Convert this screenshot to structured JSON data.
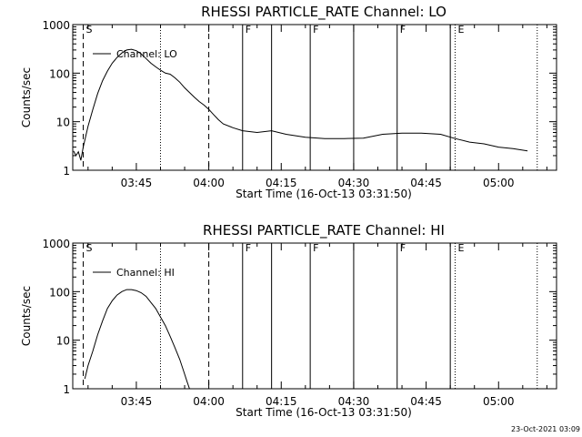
{
  "footer_date": "23-Oct-2021 03:09",
  "chart_data": [
    {
      "type": "line",
      "title": "RHESSI PARTICLE_RATE Channel: LO",
      "xlabel": "Start Time (16-Oct-13 03:31:50)",
      "ylabel": "Counts/sec",
      "yscale": "log",
      "ylim": [
        1,
        1000
      ],
      "xlim": [
        "03:31:50",
        "05:12:00"
      ],
      "x_ticks": [
        "03:45",
        "04:00",
        "04:15",
        "04:30",
        "04:45",
        "05:00"
      ],
      "y_ticks": [
        "1",
        "10",
        "100",
        "1000"
      ],
      "legend": {
        "position": "top-left",
        "entries": [
          "Channel: LO"
        ]
      },
      "markers": [
        {
          "time": "03:34",
          "style": "dashed",
          "label": "S"
        },
        {
          "time": "03:50",
          "style": "dotted",
          "label": ""
        },
        {
          "time": "04:00",
          "style": "dashed",
          "label": ""
        },
        {
          "time": "04:07",
          "style": "solid",
          "label": "F"
        },
        {
          "time": "04:13",
          "style": "solid",
          "label": ""
        },
        {
          "time": "04:21",
          "style": "solid",
          "label": "F"
        },
        {
          "time": "04:30",
          "style": "solid",
          "label": ""
        },
        {
          "time": "04:39",
          "style": "solid",
          "label": "F"
        },
        {
          "time": "04:50",
          "style": "solid",
          "label": ""
        },
        {
          "time": "04:51",
          "style": "dotted",
          "label": "E"
        },
        {
          "time": "05:08",
          "style": "dotted",
          "label": ""
        }
      ],
      "series": [
        {
          "name": "Channel: LO",
          "x": [
            "03:32:00",
            "03:32:30",
            "03:33:00",
            "03:33:30",
            "03:34:00",
            "03:35:00",
            "03:36:00",
            "03:37:00",
            "03:38:00",
            "03:39:00",
            "03:40:00",
            "03:41:00",
            "03:42:00",
            "03:43:00",
            "03:44:00",
            "03:45:00",
            "03:46:00",
            "03:47:00",
            "03:48:00",
            "03:49:00",
            "03:50:00",
            "03:51:00",
            "03:52:00",
            "03:53:00",
            "03:54:00",
            "03:55:00",
            "03:56:00",
            "03:57:00",
            "03:58:00",
            "03:59:00",
            "04:00:00",
            "04:01:00",
            "04:02:00",
            "04:03:00",
            "04:05:00",
            "04:07:00",
            "04:10:00",
            "04:13:00",
            "04:16:00",
            "04:20:00",
            "04:24:00",
            "04:28:00",
            "04:32:00",
            "04:36:00",
            "04:40:00",
            "04:44:00",
            "04:48:00",
            "04:51:00",
            "04:54:00",
            "04:57:00",
            "05:00:00",
            "05:03:00",
            "05:06:00"
          ],
          "values": [
            2.5,
            2.0,
            2.4,
            1.6,
            3.0,
            8,
            18,
            38,
            70,
            110,
            160,
            210,
            260,
            300,
            310,
            290,
            250,
            200,
            160,
            135,
            115,
            100,
            95,
            80,
            65,
            50,
            40,
            32,
            26,
            22,
            18,
            14,
            11,
            9,
            7.5,
            6.5,
            6.0,
            6.5,
            5.5,
            4.8,
            4.5,
            4.5,
            4.6,
            5.5,
            5.8,
            5.8,
            5.5,
            4.5,
            3.8,
            3.5,
            3.0,
            2.8,
            2.5
          ]
        }
      ]
    },
    {
      "type": "line",
      "title": "RHESSI PARTICLE_RATE Channel: HI",
      "xlabel": "Start Time (16-Oct-13 03:31:50)",
      "ylabel": "Counts/sec",
      "yscale": "log",
      "ylim": [
        1,
        1000
      ],
      "xlim": [
        "03:31:50",
        "05:12:00"
      ],
      "x_ticks": [
        "03:45",
        "04:00",
        "04:15",
        "04:30",
        "04:45",
        "05:00"
      ],
      "y_ticks": [
        "1",
        "10",
        "100",
        "1000"
      ],
      "legend": {
        "position": "top-left",
        "entries": [
          "Channel: HI"
        ]
      },
      "markers": [
        {
          "time": "03:34",
          "style": "dashed",
          "label": "S"
        },
        {
          "time": "03:50",
          "style": "dotted",
          "label": ""
        },
        {
          "time": "04:00",
          "style": "dashed",
          "label": ""
        },
        {
          "time": "04:07",
          "style": "solid",
          "label": "F"
        },
        {
          "time": "04:13",
          "style": "solid",
          "label": ""
        },
        {
          "time": "04:21",
          "style": "solid",
          "label": "F"
        },
        {
          "time": "04:30",
          "style": "solid",
          "label": ""
        },
        {
          "time": "04:39",
          "style": "solid",
          "label": "F"
        },
        {
          "time": "04:50",
          "style": "solid",
          "label": ""
        },
        {
          "time": "04:51",
          "style": "dotted",
          "label": "E"
        },
        {
          "time": "05:08",
          "style": "dotted",
          "label": ""
        }
      ],
      "series": [
        {
          "name": "Channel: HI",
          "x": [
            "03:34:20",
            "03:35:00",
            "03:36:00",
            "03:37:00",
            "03:38:00",
            "03:39:00",
            "03:40:00",
            "03:41:00",
            "03:42:00",
            "03:43:00",
            "03:44:00",
            "03:45:00",
            "03:46:00",
            "03:47:00",
            "03:48:00",
            "03:49:00",
            "03:50:00",
            "03:51:00",
            "03:52:00",
            "03:53:00",
            "03:54:00",
            "03:55:00",
            "03:55:30",
            "03:56:00"
          ],
          "values": [
            1.6,
            3.0,
            6,
            13,
            25,
            45,
            65,
            85,
            100,
            110,
            110,
            105,
            95,
            80,
            60,
            45,
            30,
            20,
            12,
            7,
            4,
            2.0,
            1.4,
            1.0
          ]
        }
      ]
    }
  ]
}
